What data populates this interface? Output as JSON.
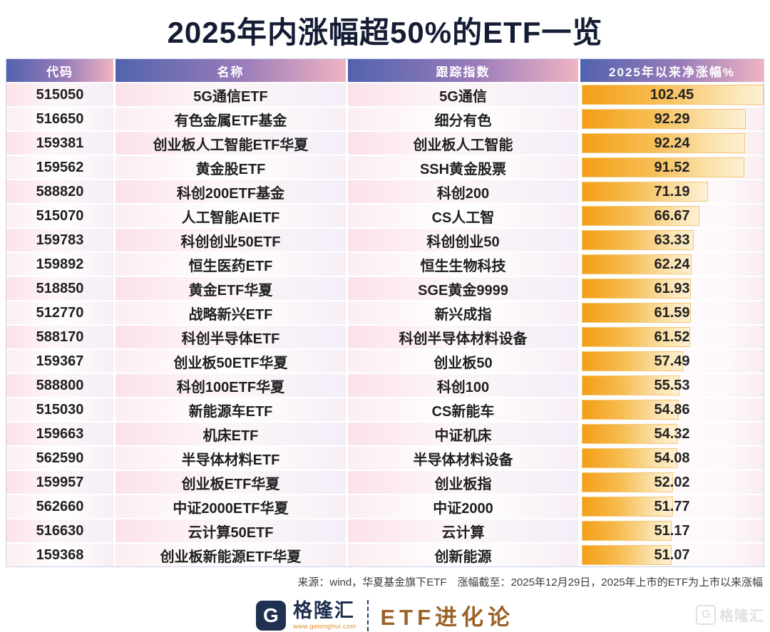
{
  "title": "2025年内涨幅超50%的ETF一览",
  "colors": {
    "title_navy": "#151d35",
    "header_gradient_left": "#5163ad",
    "header_gradient_right": "#f0b4c2",
    "bar_orange": "#f49e17",
    "bar_border": "#f2c979",
    "brand_navy": "#1d2f4e",
    "brand_bronze": "#9b6227",
    "brand_url_orange": "#e08a2c"
  },
  "chart_data": {
    "type": "table",
    "title": "2025年内涨幅超50%的ETF一览",
    "columns": [
      "代码",
      "名称",
      "跟踪指数",
      "2025年以来净涨幅%"
    ],
    "bar_column": "2025年以来净涨幅%",
    "bar_range": [
      0,
      102.45
    ],
    "rows": [
      [
        "515050",
        "5G通信ETF",
        "5G通信",
        102.45
      ],
      [
        "516650",
        "有色金属ETF基金",
        "细分有色",
        92.29
      ],
      [
        "159381",
        "创业板人工智能ETF华夏",
        "创业板人工智能",
        92.24
      ],
      [
        "159562",
        "黄金股ETF",
        "SSH黄金股票",
        91.52
      ],
      [
        "588820",
        "科创200ETF基金",
        "科创200",
        71.19
      ],
      [
        "515070",
        "人工智能AIETF",
        "CS人工智",
        66.67
      ],
      [
        "159783",
        "科创创业50ETF",
        "科创创业50",
        63.33
      ],
      [
        "159892",
        "恒生医药ETF",
        "恒生生物科技",
        62.24
      ],
      [
        "518850",
        "黄金ETF华夏",
        "SGE黄金9999",
        61.93
      ],
      [
        "512770",
        "战略新兴ETF",
        "新兴成指",
        61.59
      ],
      [
        "588170",
        "科创半导体ETF",
        "科创半导体材料设备",
        61.52
      ],
      [
        "159367",
        "创业板50ETF华夏",
        "创业板50",
        57.49
      ],
      [
        "588800",
        "科创100ETF华夏",
        "科创100",
        55.53
      ],
      [
        "515030",
        "新能源车ETF",
        "CS新能车",
        54.86
      ],
      [
        "159663",
        "机床ETF",
        "中证机床",
        54.32
      ],
      [
        "562590",
        "半导体材料ETF",
        "半导体材料设备",
        54.08
      ],
      [
        "159957",
        "创业板ETF华夏",
        "创业板指",
        52.02
      ],
      [
        "562660",
        "中证2000ETF华夏",
        "中证2000",
        51.77
      ],
      [
        "516630",
        "云计算50ETF",
        "云计算",
        51.17
      ],
      [
        "159368",
        "创业板新能源ETF华夏",
        "创新能源",
        51.07
      ]
    ],
    "source_note": "来源：wind，华夏基金旗下ETF　涨幅截至：2025年12月29日，2025年上市的ETF为上市以来涨幅"
  },
  "footnote": "来源：wind，华夏基金旗下ETF　涨幅截至：2025年12月29日，2025年上市的ETF为上市以来涨幅",
  "footer": {
    "brand_initial": "G",
    "brand_name": "格隆汇",
    "brand_url": "www.gelonghui.com",
    "series_name": "ETF进化论",
    "watermark_initial": "G",
    "watermark_text": "格隆汇"
  }
}
